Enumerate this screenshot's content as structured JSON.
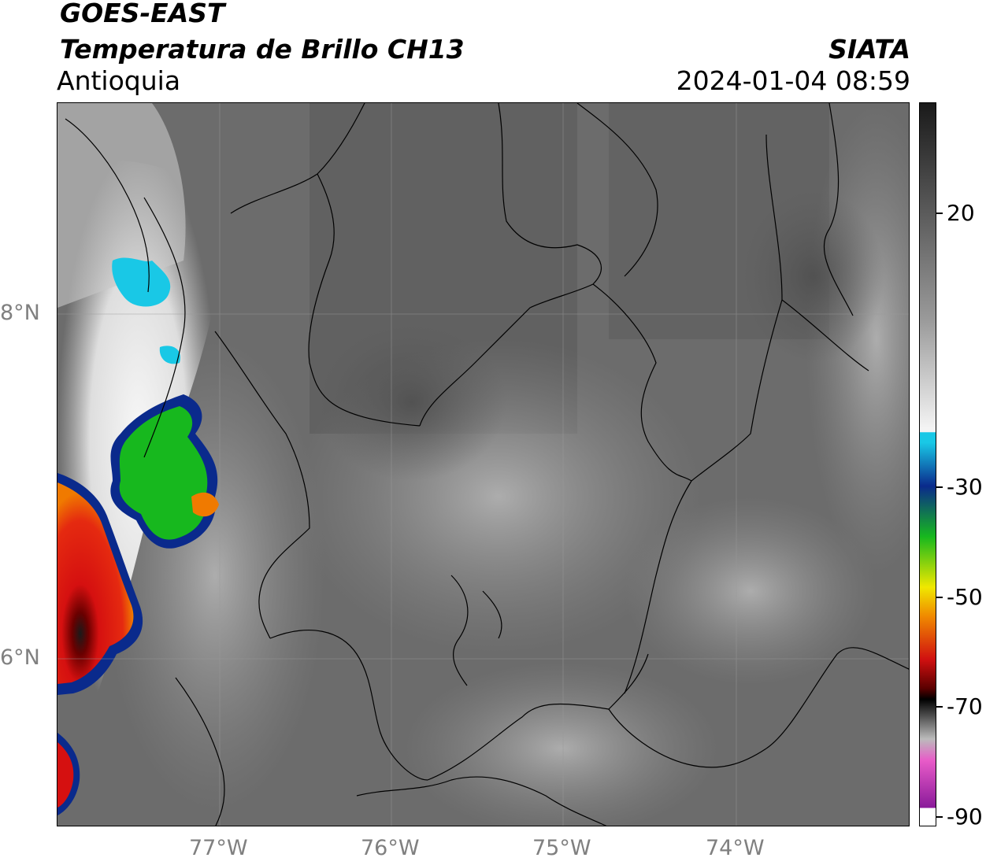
{
  "header": {
    "satellite": "GOES-EAST",
    "product": "Temperatura de Brillo CH13",
    "region": "Antioquia",
    "organization": "SIATA",
    "datetime": "2024-01-04 08:59"
  },
  "map": {
    "lat_labels": [
      "8°N",
      "6°N"
    ],
    "lon_labels": [
      "77°W",
      "76°W",
      "75°W",
      "74°W"
    ],
    "gridlines": true
  },
  "colorbar": {
    "ticks": [
      "20",
      "-30",
      "-50",
      "-70",
      "-90"
    ],
    "colors": {
      "warm_gray_top": "#1a1a1a",
      "gray_mid": "#9a9a9a",
      "white": "#f4f4f4",
      "cyan": "#19c8e6",
      "blue": "#0a2a8c",
      "green": "#17b81e",
      "yellow": "#f0e800",
      "orange": "#f08a00",
      "red": "#d01010",
      "dark_red": "#5a0000",
      "black": "#000000",
      "pink": "#e85bc8",
      "purple": "#8a1a9a"
    }
  }
}
